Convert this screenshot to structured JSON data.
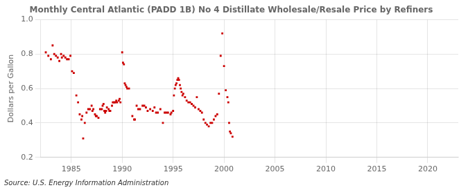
{
  "chart_data": {
    "type": "scatter",
    "title": "Monthly Central Atlantic (PADD 1B) No 4 Distillate Wholesale/Resale Price by Refiners",
    "ylabel": "Dollars per Gallon",
    "annotations": [
      "Source: U.S. Energy Information Administration"
    ],
    "color": "#cc0000",
    "marker": "square",
    "grid": true,
    "xlim": [
      1982,
      2023
    ],
    "ylim": [
      0.2,
      1.0
    ],
    "xticks": [
      1985,
      1990,
      1995,
      2000,
      2005,
      2010,
      2015,
      2020
    ],
    "yticks": [
      0.2,
      0.4,
      0.6,
      0.8,
      {
        "value": 1.0,
        "label": "1.0"
      }
    ],
    "x": [
      1982.5,
      1982.75,
      1983.0,
      1983.17,
      1983.33,
      1983.5,
      1983.67,
      1983.83,
      1984.0,
      1984.08,
      1984.25,
      1984.42,
      1984.58,
      1984.75,
      1984.92,
      1985.08,
      1985.25,
      1985.5,
      1985.67,
      1985.83,
      1986.0,
      1986.08,
      1986.17,
      1986.33,
      1986.5,
      1986.67,
      1986.83,
      1987.0,
      1987.08,
      1987.17,
      1987.33,
      1987.42,
      1987.5,
      1987.67,
      1987.83,
      1988.0,
      1988.08,
      1988.17,
      1988.25,
      1988.33,
      1988.42,
      1988.5,
      1988.67,
      1988.75,
      1988.83,
      1989.0,
      1989.08,
      1989.17,
      1989.25,
      1989.33,
      1989.42,
      1989.5,
      1989.67,
      1989.75,
      1989.83,
      1990.0,
      1990.08,
      1990.17,
      1990.25,
      1990.33,
      1990.42,
      1990.5,
      1990.67,
      1991.0,
      1991.17,
      1991.25,
      1991.42,
      1991.58,
      1991.75,
      1992.0,
      1992.17,
      1992.33,
      1992.5,
      1992.75,
      1993.0,
      1993.17,
      1993.33,
      1993.5,
      1993.75,
      1994.0,
      1994.17,
      1994.33,
      1994.5,
      1994.75,
      1994.83,
      1995.0,
      1995.08,
      1995.17,
      1995.25,
      1995.33,
      1995.42,
      1995.5,
      1995.58,
      1995.67,
      1995.75,
      1995.83,
      1995.92,
      1996.0,
      1996.17,
      1996.33,
      1996.5,
      1996.67,
      1996.83,
      1997.0,
      1997.17,
      1997.33,
      1997.5,
      1997.67,
      1997.83,
      1998.0,
      1998.17,
      1998.33,
      1998.5,
      1998.67,
      1998.83,
      1999.0,
      1999.17,
      1999.33,
      1999.5,
      1999.67,
      1999.83,
      2000.0,
      2000.17,
      2000.33,
      2000.42,
      2000.5,
      2000.58,
      2000.67,
      2000.83
    ],
    "values": [
      0.81,
      0.79,
      0.77,
      0.85,
      0.8,
      0.79,
      0.78,
      0.76,
      0.8,
      0.78,
      0.79,
      0.78,
      0.77,
      0.77,
      0.79,
      0.7,
      0.69,
      0.56,
      0.52,
      0.45,
      0.42,
      0.44,
      0.31,
      0.4,
      0.46,
      0.48,
      0.48,
      0.5,
      0.47,
      0.48,
      0.45,
      0.44,
      0.44,
      0.43,
      0.48,
      0.48,
      0.5,
      0.51,
      0.47,
      0.46,
      0.47,
      0.49,
      0.48,
      0.47,
      0.47,
      0.5,
      0.52,
      0.52,
      0.52,
      0.52,
      0.53,
      0.52,
      0.53,
      0.54,
      0.52,
      0.81,
      0.75,
      0.74,
      0.63,
      0.62,
      0.61,
      0.6,
      0.6,
      0.44,
      0.42,
      0.42,
      0.5,
      0.48,
      0.48,
      0.5,
      0.5,
      0.49,
      0.47,
      0.48,
      0.47,
      0.49,
      0.46,
      0.46,
      0.48,
      0.4,
      0.46,
      0.46,
      0.46,
      0.45,
      0.46,
      0.47,
      0.56,
      0.6,
      0.62,
      0.63,
      0.65,
      0.66,
      0.65,
      0.62,
      0.6,
      0.58,
      0.56,
      0.57,
      0.55,
      0.53,
      0.52,
      0.52,
      0.51,
      0.5,
      0.49,
      0.55,
      0.48,
      0.47,
      0.46,
      0.42,
      0.4,
      0.39,
      0.38,
      0.4,
      0.4,
      0.42,
      0.44,
      0.45,
      0.57,
      0.79,
      0.92,
      0.73,
      0.59,
      0.55,
      0.52,
      0.4,
      0.35,
      0.34,
      0.32
    ]
  }
}
